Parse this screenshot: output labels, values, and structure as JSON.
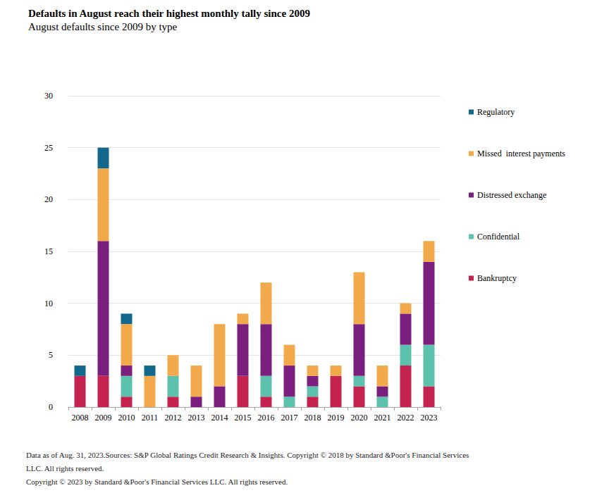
{
  "chart_data": {
    "type": "bar",
    "title": "Defaults in August reach their highest monthly tally since 2009",
    "subtitle": "August defaults since 2009 by type",
    "categories": [
      "2008",
      "2009",
      "2010",
      "2011",
      "2012",
      "2013",
      "2014",
      "2015",
      "2016",
      "2017",
      "2018",
      "2019",
      "2020",
      "2021",
      "2022",
      "2023"
    ],
    "series": [
      {
        "name": "Bankruptcy",
        "color": "#c4234f",
        "values": [
          3,
          3,
          1,
          0,
          1,
          0,
          0,
          3,
          1,
          0,
          1,
          3,
          2,
          0,
          4,
          2
        ]
      },
      {
        "name": "Confidential",
        "color": "#5cc2ad",
        "values": [
          0,
          0,
          2,
          0,
          2,
          0,
          0,
          0,
          2,
          1,
          1,
          0,
          1,
          1,
          2,
          4
        ]
      },
      {
        "name": "Distressed exchange",
        "color": "#7a1f7d",
        "values": [
          0,
          13,
          1,
          0,
          0,
          1,
          2,
          5,
          5,
          3,
          1,
          0,
          5,
          1,
          3,
          8
        ]
      },
      {
        "name": "Missed  interest payments",
        "color": "#f2a94b",
        "values": [
          0,
          7,
          4,
          3,
          2,
          3,
          6,
          1,
          4,
          2,
          1,
          1,
          5,
          2,
          1,
          2
        ]
      },
      {
        "name": "Regulatory",
        "color": "#12688a",
        "values": [
          1,
          2,
          1,
          1,
          0,
          0,
          0,
          0,
          0,
          0,
          0,
          0,
          0,
          0,
          0,
          0
        ]
      }
    ],
    "ylim": [
      0,
      30
    ],
    "yticks": [
      0,
      5,
      10,
      15,
      20,
      25,
      30
    ],
    "grid": true,
    "stacked": true,
    "legend": "right",
    "footnotes": [
      "Data as of Aug. 31, 2023.Sources: S&P Global Ratings Credit Research & Insights. Copyright © 2018 by Standard &Poor's Financial Services LLC. All rights reserved.",
      "Copyright © 2023 by Standard &Poor's Financial Services LLC. All rights reserved."
    ]
  }
}
